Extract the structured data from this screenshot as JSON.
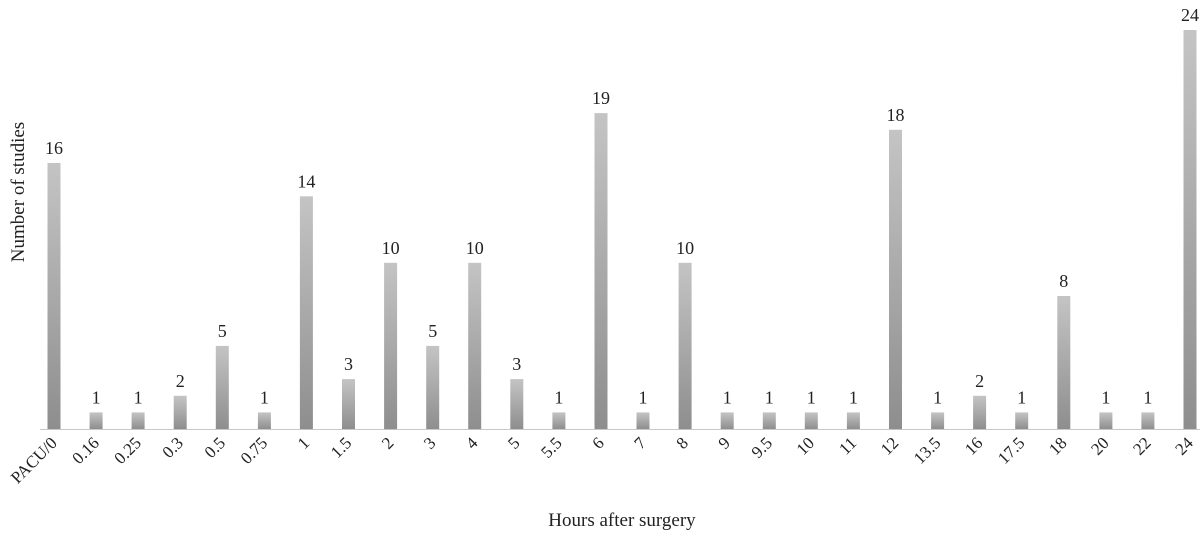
{
  "chart_data": {
    "type": "bar",
    "title": "",
    "xlabel": "Hours after surgery",
    "ylabel": "Number of studies",
    "ylim": [
      0,
      24
    ],
    "grid": false,
    "legend": "none",
    "categories": [
      "PACU/0",
      "0.16",
      "0.25",
      "0.3",
      "0.5",
      "0.75",
      "1",
      "1.5",
      "2",
      "3",
      "4",
      "5",
      "5.5",
      "6",
      "7",
      "8",
      "9",
      "9.5",
      "10",
      "11",
      "12",
      "13.5",
      "16",
      "17.5",
      "18",
      "20",
      "22",
      "24"
    ],
    "values": [
      16,
      1,
      1,
      2,
      5,
      1,
      14,
      3,
      10,
      5,
      10,
      3,
      1,
      19,
      1,
      10,
      1,
      1,
      1,
      1,
      18,
      1,
      2,
      1,
      8,
      1,
      1,
      24
    ],
    "colors": {
      "bar_light": "#c4c4c4",
      "bar_dark": "#8e8e8e",
      "axis": "#c8c8c8",
      "text": "#222222"
    }
  }
}
